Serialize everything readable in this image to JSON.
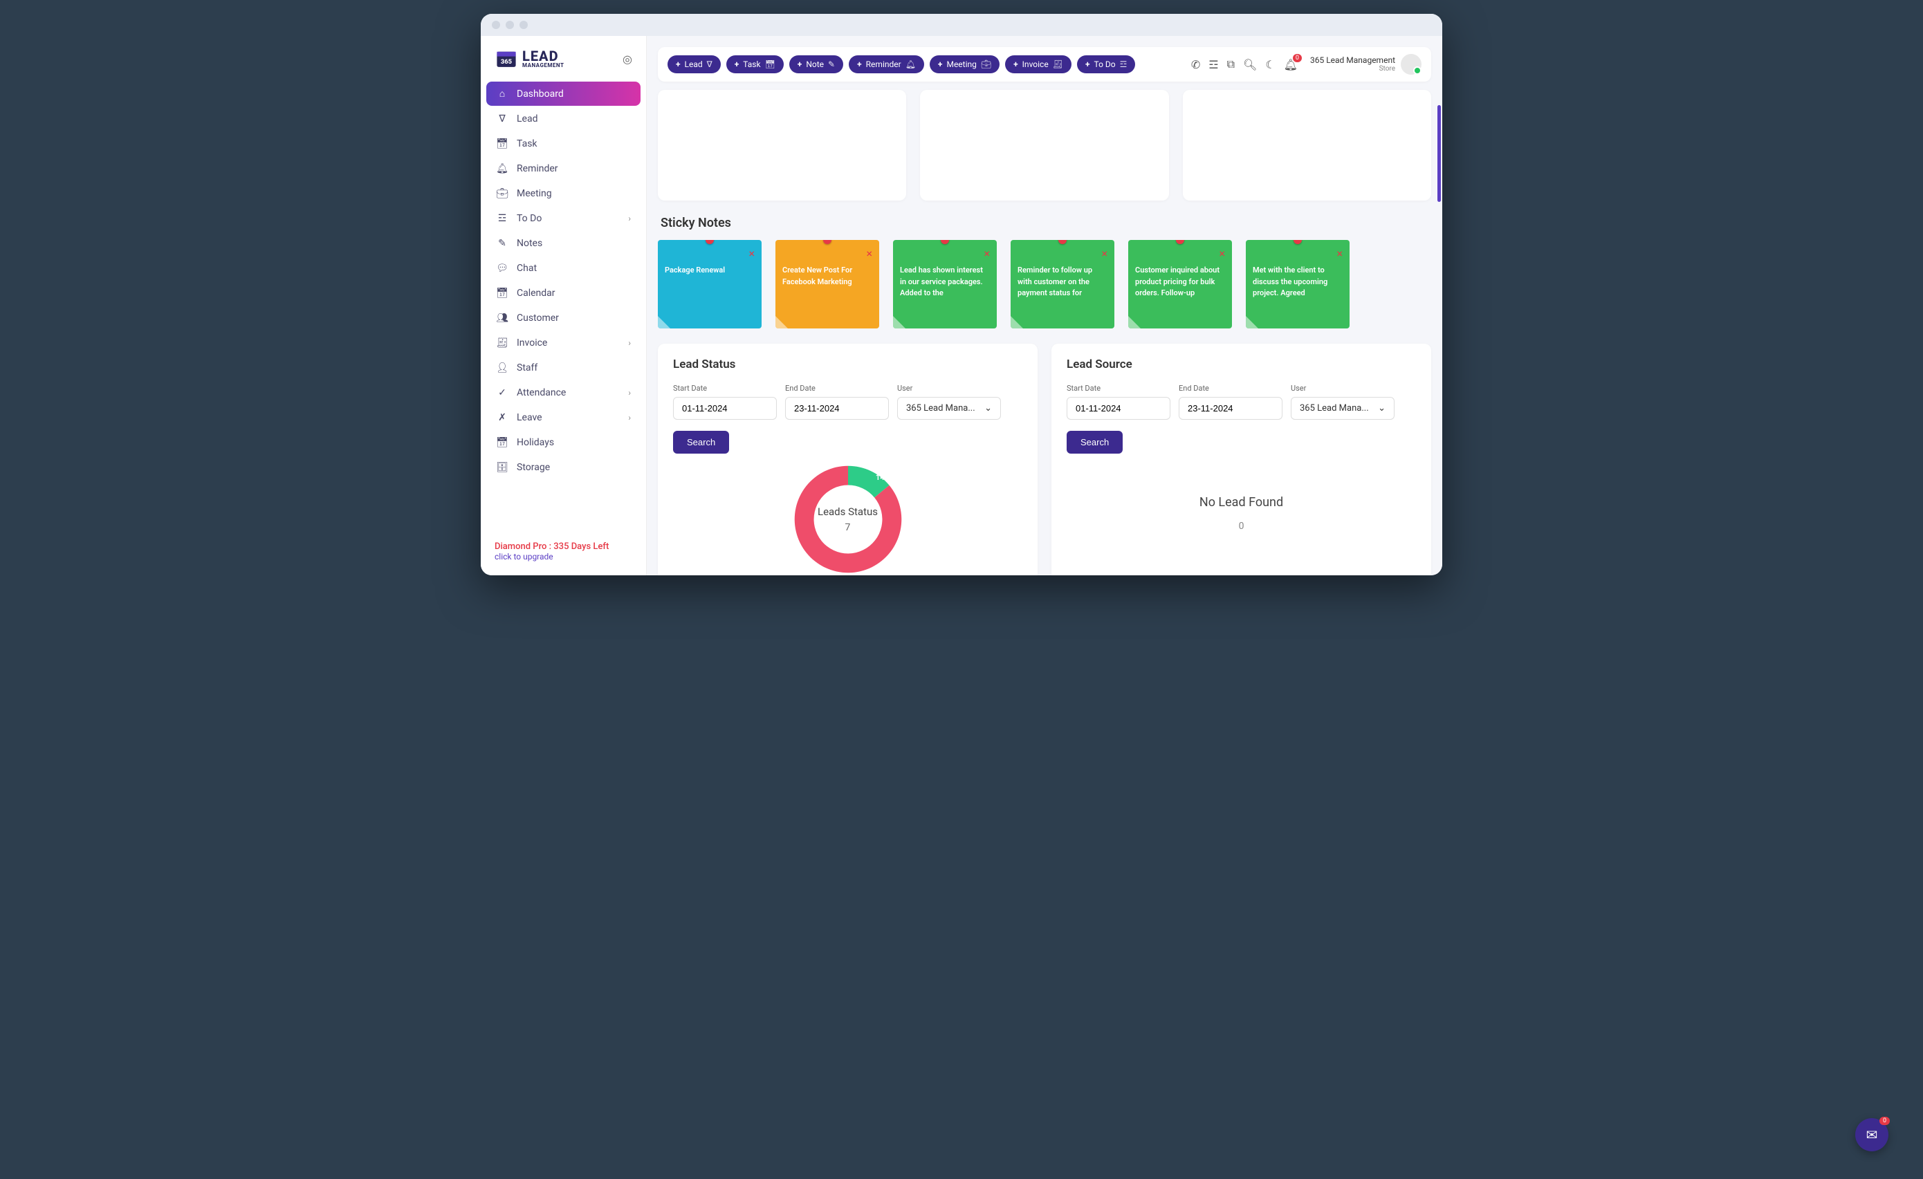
{
  "logo": {
    "brand_top": "LEAD",
    "brand_sub": "MANAGEMENT",
    "badge": "365"
  },
  "sidebar": {
    "items": [
      {
        "label": "Dashboard",
        "icon": "home",
        "active": true
      },
      {
        "label": "Lead",
        "icon": "funnel"
      },
      {
        "label": "Task",
        "icon": "calendar"
      },
      {
        "label": "Reminder",
        "icon": "bell"
      },
      {
        "label": "Meeting",
        "icon": "briefcase"
      },
      {
        "label": "To Do",
        "icon": "checklist",
        "expandable": true
      },
      {
        "label": "Notes",
        "icon": "note"
      },
      {
        "label": "Chat",
        "icon": "chat"
      },
      {
        "label": "Calendar",
        "icon": "calendar"
      },
      {
        "label": "Customer",
        "icon": "users"
      },
      {
        "label": "Invoice",
        "icon": "invoice",
        "expandable": true
      },
      {
        "label": "Staff",
        "icon": "person"
      },
      {
        "label": "Attendance",
        "icon": "check-circle",
        "expandable": true
      },
      {
        "label": "Leave",
        "icon": "user-x",
        "expandable": true
      },
      {
        "label": "Holidays",
        "icon": "calendar"
      },
      {
        "label": "Storage",
        "icon": "storage"
      }
    ],
    "plan": "Diamond Pro : 335 Days Left",
    "upgrade": "click to upgrade"
  },
  "topbar": {
    "actions": [
      {
        "label": "Lead",
        "icon": "funnel"
      },
      {
        "label": "Task",
        "icon": "calendar"
      },
      {
        "label": "Note",
        "icon": "note"
      },
      {
        "label": "Reminder",
        "icon": "bell"
      },
      {
        "label": "Meeting",
        "icon": "briefcase"
      },
      {
        "label": "Invoice",
        "icon": "invoice"
      },
      {
        "label": "To Do",
        "icon": "checklist"
      }
    ],
    "notif_count": "0",
    "user": {
      "name": "365 Lead Management",
      "role": "Store"
    }
  },
  "sticky": {
    "title": "Sticky Notes",
    "notes": [
      {
        "text": "Package Renewal",
        "bg": "#1fb5d6",
        "close": "#e63946"
      },
      {
        "text": "Create New Post For Facebook Marketing",
        "bg": "#f5a623",
        "close": "#e63946"
      },
      {
        "text": "Lead has shown interest in our service packages. Added to the",
        "bg": "#3bbd5b",
        "close": "#e63946"
      },
      {
        "text": "Reminder to follow up with customer on the payment status for",
        "bg": "#3bbd5b",
        "close": "#e63946"
      },
      {
        "text": "Customer inquired about product pricing for bulk orders. Follow-up",
        "bg": "#3bbd5b",
        "close": "#e63946"
      },
      {
        "text": "Met with the client to discuss the upcoming project. Agreed",
        "bg": "#3bbd5b",
        "close": "#e63946"
      }
    ]
  },
  "lead_status": {
    "title": "Lead Status",
    "start_label": "Start Date",
    "start_value": "01-11-2024",
    "end_label": "End Date",
    "end_value": "23-11-2024",
    "user_label": "User",
    "user_value": "365 Lead Mana...",
    "search": "Search",
    "chart": {
      "type": "donut",
      "center_title": "Leads Status",
      "center_value": "7",
      "slices": [
        {
          "label": "14%",
          "value": 14,
          "color": "#2dcc88"
        },
        {
          "value": 86,
          "color": "#ef4d6a"
        }
      ],
      "inner_radius": 64,
      "outer_radius": 100,
      "label_fontsize": 11,
      "label_color": "#ffffff",
      "background": "#ffffff"
    }
  },
  "lead_source": {
    "title": "Lead Source",
    "start_label": "Start Date",
    "start_value": "01-11-2024",
    "end_label": "End Date",
    "end_value": "23-11-2024",
    "user_label": "User",
    "user_value": "365 Lead Mana...",
    "search": "Search",
    "empty_msg": "No Lead Found",
    "empty_count": "0"
  },
  "fab_badge": "0",
  "colors": {
    "primary": "#3c2a8f",
    "gradient_start": "#5b3fc4",
    "gradient_end": "#d633a8",
    "danger": "#e63946",
    "page_bg": "#f5f6fa"
  }
}
